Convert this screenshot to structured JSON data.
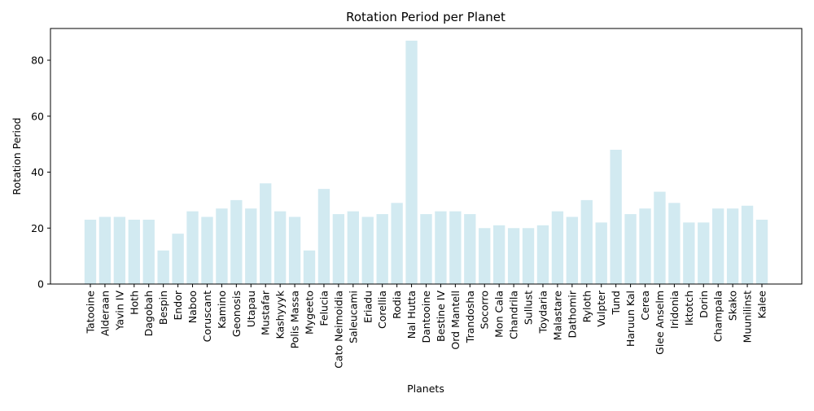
{
  "chart_data": {
    "type": "bar",
    "title": "Rotation Period per Planet",
    "xlabel": "Planets",
    "ylabel": "Rotation Period",
    "ylim": [
      0,
      91.35
    ],
    "yticks": [
      0,
      20,
      40,
      60,
      80
    ],
    "grid": false,
    "bar_color": "#add8e6",
    "bar_opacity": 0.55,
    "categories": [
      "Tatooine",
      "Alderaan",
      "Yavin IV",
      "Hoth",
      "Dagobah",
      "Bespin",
      "Endor",
      "Naboo",
      "Coruscant",
      "Kamino",
      "Geonosis",
      "Utapau",
      "Mustafar",
      "Kashyyyk",
      "Polis Massa",
      "Mygeeto",
      "Felucia",
      "Cato Neimoidia",
      "Saleucami",
      "Eriadu",
      "Corellia",
      "Rodia",
      "Nal Hutta",
      "Dantooine",
      "Bestine IV",
      "Ord Mantell",
      "Trandosha",
      "Socorro",
      "Mon Cala",
      "Chandrila",
      "Sullust",
      "Toydaria",
      "Malastare",
      "Dathomir",
      "Ryloth",
      "Vulpter",
      "Tund",
      "Haruun Kal",
      "Cerea",
      "Glee Anselm",
      "Iridonia",
      "Iktotch",
      "Dorin",
      "Champala",
      "Skako",
      "Muunilinst",
      "Kalee"
    ],
    "values": [
      23,
      24,
      24,
      23,
      23,
      12,
      18,
      26,
      24,
      27,
      30,
      27,
      36,
      26,
      24,
      12,
      34,
      25,
      26,
      24,
      25,
      29,
      87,
      25,
      26,
      26,
      25,
      20,
      21,
      20,
      20,
      21,
      26,
      24,
      30,
      22,
      48,
      25,
      27,
      33,
      29,
      22,
      22,
      27,
      27,
      28,
      23
    ]
  }
}
